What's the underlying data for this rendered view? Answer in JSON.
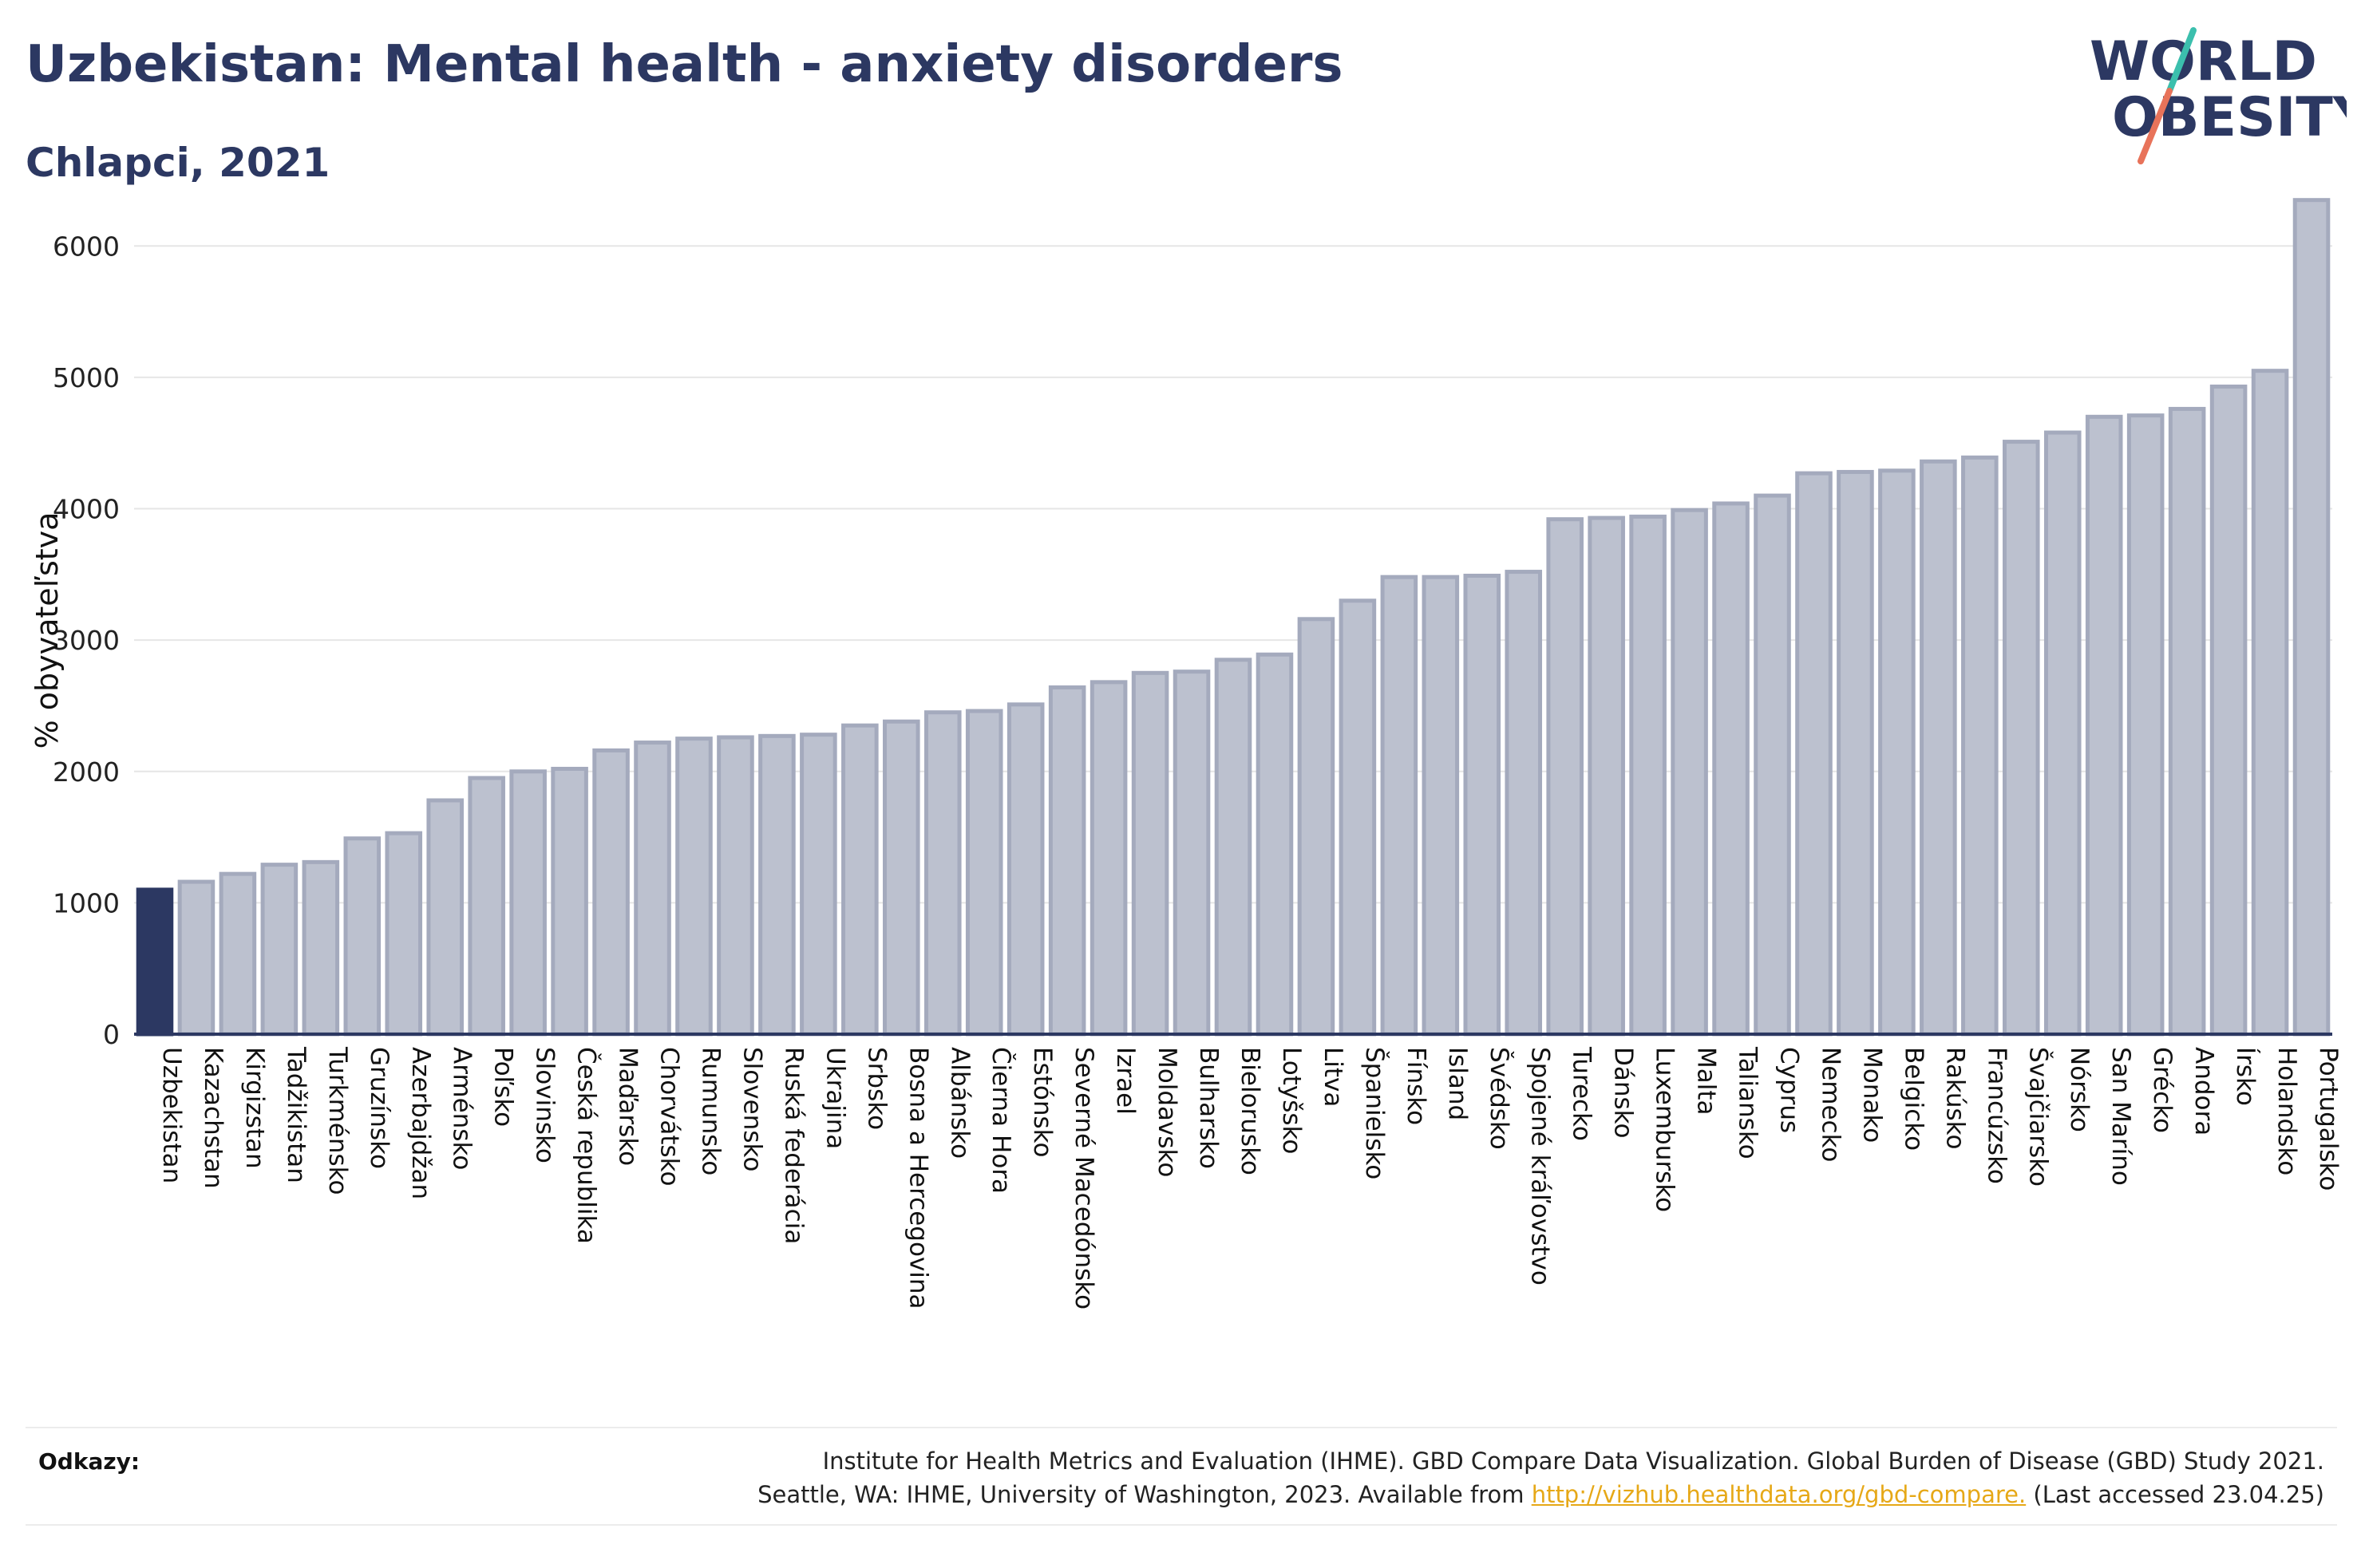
{
  "header": {
    "title": "Uzbekistan: Mental health - anxiety disorders",
    "subtitle": "Chlapci, 2021"
  },
  "logo": {
    "line1": "WORLD",
    "line2": "OBESITY"
  },
  "colors": {
    "highlight": "#2c3862",
    "bar_fill": "#bcc1cf",
    "bar_stroke": "#a4aabd",
    "text": "#2c3862",
    "logo_teal": "#3bbfad",
    "logo_coral": "#e8735a"
  },
  "chart_data": {
    "type": "bar",
    "title": "Uzbekistan: Mental health - anxiety disorders",
    "subtitle": "Chlapci, 2021",
    "xlabel": "",
    "ylabel": "% obyvateľstva",
    "ylim": [
      0,
      6500
    ],
    "yticks": [
      0,
      1000,
      2000,
      3000,
      4000,
      5000,
      6000
    ],
    "grid": true,
    "highlight": "Uzbekistan",
    "categories": [
      "Uzbekistan",
      "Kazachstan",
      "Kirgizstan",
      "Tadžikistan",
      "Turkménsko",
      "Gruzínsko",
      "Azerbajdžan",
      "Arménsko",
      "Poľsko",
      "Slovinsko",
      "Česká republika",
      "Maďarsko",
      "Chorvátsko",
      "Rumunsko",
      "Slovensko",
      "Ruská federácia",
      "Ukrajina",
      "Srbsko",
      "Bosna a Hercegovina",
      "Albánsko",
      "Čierna Hora",
      "Estónsko",
      "Severné Macedónsko",
      "Izrael",
      "Moldavsko",
      "Bulharsko",
      "Bielorusko",
      "Lotyšsko",
      "Litva",
      "Španielsko",
      "Fínsko",
      "Island",
      "Švédsko",
      "Spojené kráľovstvo",
      "Turecko",
      "Dánsko",
      "Luxembursko",
      "Malta",
      "Taliansko",
      "Cyprus",
      "Nemecko",
      "Monako",
      "Belgicko",
      "Rakúsko",
      "Francúzsko",
      "Švajčiarsko",
      "Nórsko",
      "San Maríno",
      "Grécko",
      "Andora",
      "Írsko",
      "Holandsko",
      "Portugalsko"
    ],
    "values": [
      1100,
      1160,
      1220,
      1290,
      1310,
      1490,
      1530,
      1780,
      1950,
      2000,
      2020,
      2160,
      2220,
      2250,
      2260,
      2270,
      2280,
      2350,
      2380,
      2450,
      2460,
      2510,
      2640,
      2680,
      2750,
      2760,
      2850,
      2890,
      3160,
      3300,
      3480,
      3480,
      3490,
      3520,
      3920,
      3930,
      3940,
      3990,
      4040,
      4100,
      4270,
      4280,
      4290,
      4360,
      4390,
      4510,
      4580,
      4700,
      4710,
      4760,
      4930,
      5050,
      6350
    ]
  },
  "footer": {
    "refs_label": "Odkazy:",
    "line1": "Institute for Health Metrics and Evaluation (IHME). GBD Compare Data Visualization. Global Burden of Disease (GBD) Study 2021.",
    "line2_pre": "Seattle, WA: IHME, University of Washington, 2023. Available from ",
    "link": "http://vizhub.healthdata.org/gbd-compare.",
    "line2_post": " (Last accessed 23.04.25)"
  }
}
